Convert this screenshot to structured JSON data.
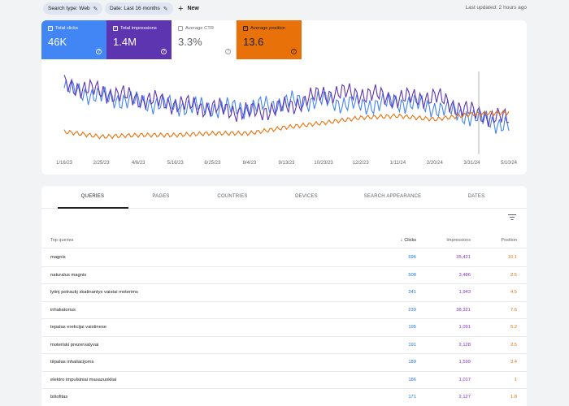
{
  "filters": {
    "search_type": "Search type: Web",
    "date": "Date: Last 16 months",
    "new_label": "New",
    "last_updated": "Last updated: 2 hours ago"
  },
  "metrics": [
    {
      "label": "Total clicks",
      "value": "46K",
      "checked": true,
      "color": "#4285f4"
    },
    {
      "label": "Total impressions",
      "value": "1.4M",
      "checked": true,
      "color": "#5e35b1"
    },
    {
      "label": "Average CTR",
      "value": "3.3%",
      "checked": false,
      "color": "#ffffff"
    },
    {
      "label": "Average position",
      "value": "13.6",
      "checked": true,
      "color": "#e8710a"
    }
  ],
  "chart_data": {
    "type": "line",
    "x_ticks": [
      "1/16/23",
      "2/25/23",
      "4/6/23",
      "5/16/23",
      "6/25/23",
      "8/4/23",
      "9/13/23",
      "10/23/23",
      "12/2/23",
      "1/11/24",
      "2/20/24",
      "3/31/24",
      "5/10/24"
    ],
    "series": [
      {
        "metric": "Total clicks",
        "color": "#4285f4",
        "level": [
          0.78,
          0.68,
          0.62,
          0.58,
          0.55,
          0.55,
          0.62,
          0.64,
          0.58,
          0.62,
          0.56,
          0.45,
          0.35
        ]
      },
      {
        "metric": "Total impressions",
        "color": "#5e35b1",
        "level": [
          0.82,
          0.74,
          0.66,
          0.6,
          0.55,
          0.5,
          0.56,
          0.72,
          0.72,
          0.66,
          0.68,
          0.5,
          0.42
        ]
      },
      {
        "metric": "Average position",
        "color": "#e8710a",
        "level": [
          0.28,
          0.22,
          0.24,
          0.24,
          0.26,
          0.26,
          0.33,
          0.38,
          0.44,
          0.46,
          0.42,
          0.48,
          0.5
        ]
      }
    ],
    "grid": false,
    "legend": "none"
  },
  "tabs": [
    "QUERIES",
    "PAGES",
    "COUNTRIES",
    "DEVICES",
    "SEARCH APPEARANCE",
    "DATES"
  ],
  "table": {
    "headers": {
      "query": "Top queries",
      "clicks": "Clicks",
      "impressions": "Impressions",
      "position": "Position"
    },
    "rows": [
      {
        "query": "magnis",
        "clicks": "696",
        "impressions": "35,421",
        "position": "10.1"
      },
      {
        "query": "naturalus magnis",
        "clicks": "508",
        "impressions": "3,486",
        "position": "2.5"
      },
      {
        "query": "lytinį potraukį skatinantys vaistai moterims",
        "clicks": "241",
        "impressions": "1,943",
        "position": "4.5"
      },
      {
        "query": "inhaliatorius",
        "clicks": "239",
        "impressions": "38,321",
        "position": "7.6"
      },
      {
        "query": "tepalas erekcijai vaistinese",
        "clicks": "195",
        "impressions": "1,091",
        "position": "5.2"
      },
      {
        "query": "moteriski prezervatyvai",
        "clicks": "191",
        "impressions": "2,128",
        "position": "2.5"
      },
      {
        "query": "tirpalas inhaliacijoms",
        "clicks": "189",
        "impressions": "1,599",
        "position": "3.4"
      },
      {
        "query": "elektro impulsiniai masazuokliai",
        "clicks": "186",
        "impressions": "1,017",
        "position": "1"
      },
      {
        "query": "bišofitas",
        "clicks": "171",
        "impressions": "2,127",
        "position": "1.8"
      }
    ]
  }
}
